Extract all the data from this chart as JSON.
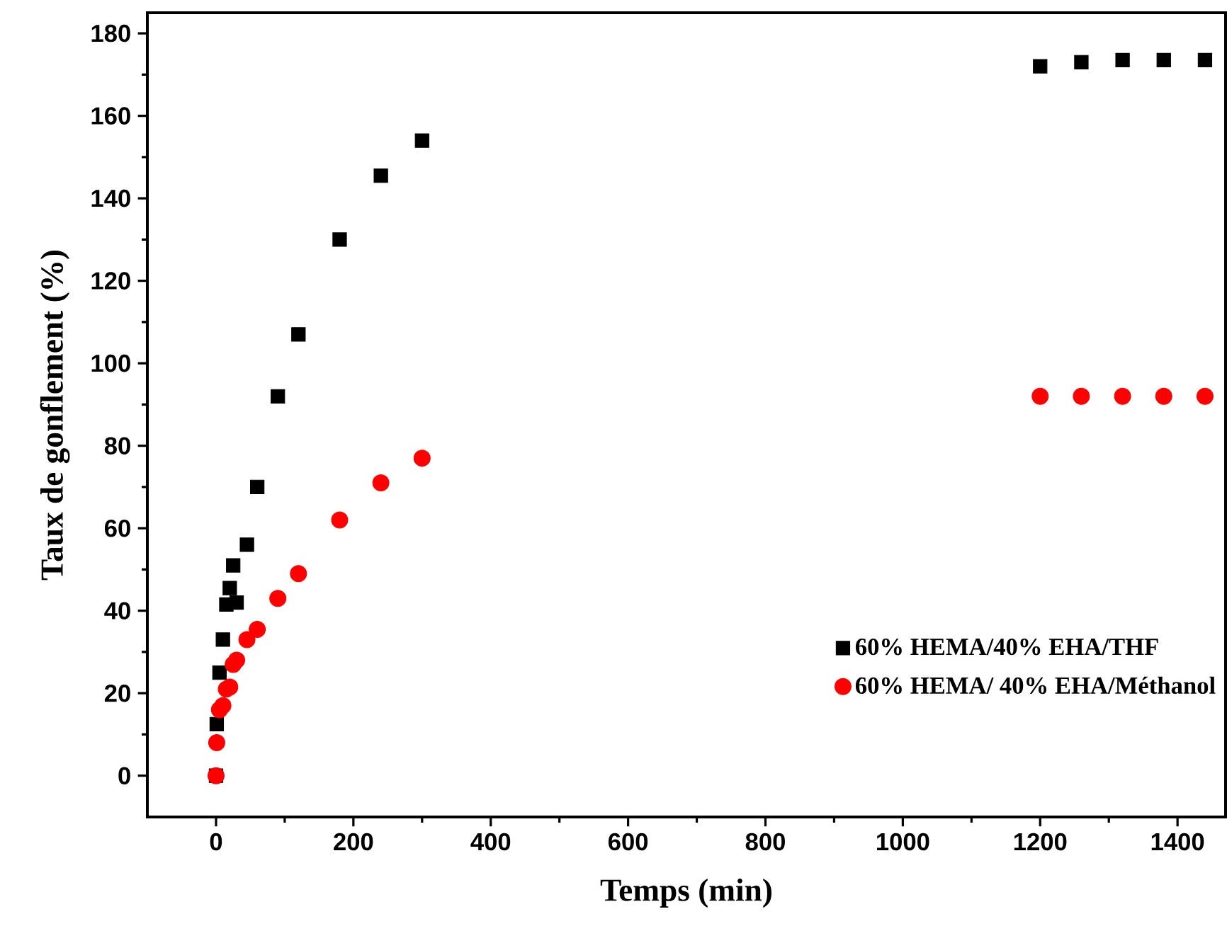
{
  "chart_data": {
    "type": "scatter",
    "xlabel": "Temps (min)",
    "ylabel": "Taux de gonflement (%)",
    "xlim": [
      -100,
      1470
    ],
    "ylim": [
      -10,
      185
    ],
    "xticks": [
      0,
      200,
      400,
      600,
      800,
      1000,
      1200,
      1400
    ],
    "yticks": [
      0,
      20,
      40,
      60,
      80,
      100,
      120,
      140,
      160,
      180
    ],
    "grid": false,
    "legend": "bottom right",
    "series": [
      {
        "name": "60% HEMA/40% EHA/THF",
        "color": "#000000",
        "marker": "square",
        "x": [
          0,
          1,
          5,
          10,
          15,
          20,
          25,
          30,
          45,
          60,
          90,
          120,
          180,
          240,
          300,
          1200,
          1260,
          1320,
          1380,
          1440
        ],
        "values": [
          0,
          12.5,
          25,
          33,
          41.5,
          45.5,
          51,
          42,
          56,
          70,
          92,
          107,
          130,
          145.5,
          154,
          172,
          173,
          173.5,
          173.5,
          173.5
        ]
      },
      {
        "name": "60% HEMA/ 40% EHA/Méthanol",
        "color": "#ff0000",
        "marker": "circle",
        "x": [
          0,
          1,
          5,
          10,
          15,
          20,
          25,
          30,
          45,
          60,
          90,
          120,
          180,
          240,
          300,
          1200,
          1260,
          1320,
          1380,
          1440
        ],
        "values": [
          0,
          8,
          16,
          17,
          21,
          21.5,
          27,
          28,
          33,
          35.5,
          43,
          49,
          62,
          71,
          77,
          92,
          92,
          92,
          92,
          92
        ]
      }
    ]
  }
}
